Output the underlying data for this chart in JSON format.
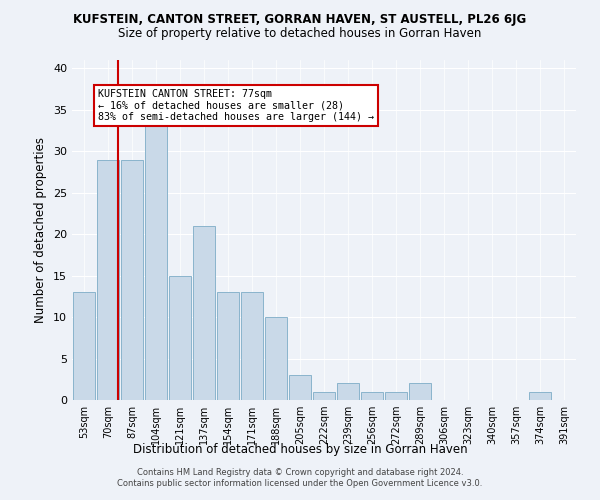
{
  "title": "KUFSTEIN, CANTON STREET, GORRAN HAVEN, ST AUSTELL, PL26 6JG",
  "subtitle": "Size of property relative to detached houses in Gorran Haven",
  "xlabel": "Distribution of detached houses by size in Gorran Haven",
  "ylabel": "Number of detached properties",
  "categories": [
    "53sqm",
    "70sqm",
    "87sqm",
    "104sqm",
    "121sqm",
    "137sqm",
    "154sqm",
    "171sqm",
    "188sqm",
    "205sqm",
    "222sqm",
    "239sqm",
    "256sqm",
    "272sqm",
    "289sqm",
    "306sqm",
    "323sqm",
    "340sqm",
    "357sqm",
    "374sqm",
    "391sqm"
  ],
  "values": [
    13,
    29,
    29,
    33,
    15,
    21,
    13,
    13,
    10,
    3,
    1,
    2,
    1,
    1,
    2,
    0,
    0,
    0,
    0,
    1,
    0
  ],
  "bar_color": "#c9d9e8",
  "bar_edge_color": "#8ab4cc",
  "background_color": "#eef2f8",
  "grid_color": "#ffffff",
  "annotation_text_line1": "KUFSTEIN CANTON STREET: 77sqm",
  "annotation_text_line2": "← 16% of detached houses are smaller (28)",
  "annotation_text_line3": "83% of semi-detached houses are larger (144) →",
  "annotation_box_color": "#ffffff",
  "annotation_box_edge": "#cc0000",
  "line_color": "#cc0000",
  "ylim": [
    0,
    41
  ],
  "yticks": [
    0,
    5,
    10,
    15,
    20,
    25,
    30,
    35,
    40
  ],
  "footer1": "Contains HM Land Registry data © Crown copyright and database right 2024.",
  "footer2": "Contains public sector information licensed under the Open Government Licence v3.0."
}
